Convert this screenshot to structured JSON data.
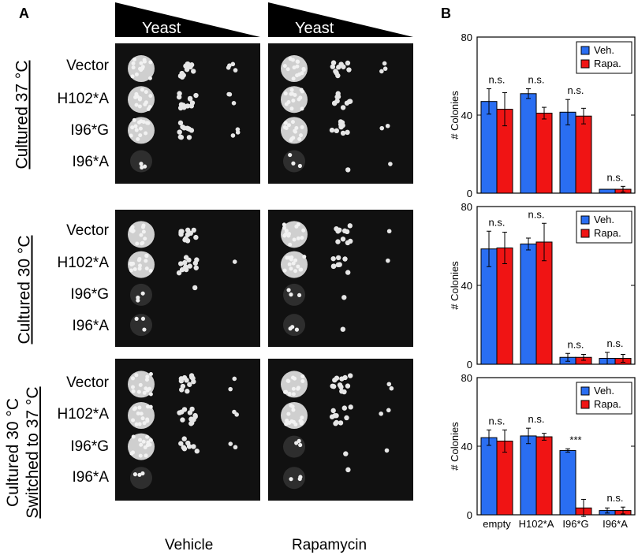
{
  "panel_a": {
    "letter": "A",
    "wedge_label": "Yeast",
    "columns": [
      "Vehicle",
      "Rapamycin"
    ],
    "groups": [
      {
        "lines": [
          "Cultured 37 °C"
        ],
        "strains": [
          "Vector",
          "H102*A",
          "I96*G",
          "I96*A"
        ]
      },
      {
        "lines": [
          "Cultured 30 °C"
        ],
        "strains": [
          "Vector",
          "H102*A",
          "I96*G",
          "I96*A"
        ]
      },
      {
        "lines": [
          "Cultured 30 °C",
          "Switched to 37 °C"
        ],
        "strains": [
          "Vector",
          "H102*A",
          "I96*G",
          "I96*A"
        ]
      }
    ]
  },
  "panel_b": {
    "letter": "B"
  },
  "colors": {
    "veh": "#2a6ef2",
    "rapa": "#f01414"
  },
  "chart_data": [
    {
      "type": "bar",
      "categories": [
        "empty",
        "H102*A",
        "I96*G",
        "I96*A"
      ],
      "series": [
        {
          "name": "Veh.",
          "values": [
            47,
            51,
            41.5,
            2
          ],
          "errors": [
            6.5,
            2.5,
            6.5,
            0
          ]
        },
        {
          "name": "Rapa.",
          "values": [
            43,
            41,
            39.5,
            2
          ],
          "errors": [
            8.5,
            3,
            4,
            1.5
          ]
        }
      ],
      "annotations": [
        "n.s.",
        "n.s.",
        "n.s.",
        "n.s."
      ],
      "ylabel": "# Colonies",
      "ylim": [
        0,
        80
      ],
      "yticks": [
        0,
        40,
        80
      ],
      "legend": "top-right"
    },
    {
      "type": "bar",
      "categories": [
        "empty",
        "H102*A",
        "I96*G",
        "I96*A"
      ],
      "series": [
        {
          "name": "Veh.",
          "values": [
            58.5,
            61,
            3.5,
            3
          ],
          "errors": [
            9,
            3,
            2,
            3
          ]
        },
        {
          "name": "Rapa.",
          "values": [
            59,
            62,
            3.5,
            3
          ],
          "errors": [
            8,
            9.5,
            1.5,
            2
          ]
        }
      ],
      "annotations": [
        "n.s.",
        "n.s.",
        "n.s.",
        "n.s."
      ],
      "ylabel": "# Colonies",
      "ylim": [
        0,
        80
      ],
      "yticks": [
        0,
        40,
        80
      ],
      "legend": "top-right"
    },
    {
      "type": "bar",
      "categories": [
        "empty",
        "H102*A",
        "I96*G",
        "I96*A"
      ],
      "series": [
        {
          "name": "Veh.",
          "values": [
            45,
            46,
            37.5,
            2.5
          ],
          "errors": [
            4.5,
            4.5,
            1,
            1.5
          ]
        },
        {
          "name": "Rapa.",
          "values": [
            43,
            45.5,
            4,
            2.5
          ],
          "errors": [
            6.5,
            2,
            5,
            2
          ]
        }
      ],
      "annotations": [
        "n.s.",
        "n.s.",
        "***",
        "n.s."
      ],
      "ylabel": "# Colonies",
      "ylim": [
        0,
        80
      ],
      "yticks": [
        0,
        40,
        80
      ],
      "legend": "top-right",
      "show_xlabels": true
    }
  ]
}
